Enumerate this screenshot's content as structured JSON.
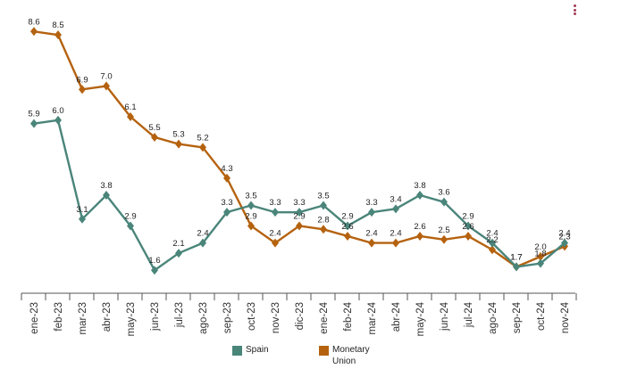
{
  "chart_data": {
    "type": "line",
    "categories": [
      "ene-23",
      "feb-23",
      "mar-23",
      "abr-23",
      "may-23",
      "jun-23",
      "jul-23",
      "ago-23",
      "sep-23",
      "oct-23",
      "nov-23",
      "dic-23",
      "ene-24",
      "feb-24",
      "mar-24",
      "abr-24",
      "may-24",
      "jun-24",
      "jul-24",
      "ago-24",
      "sep-24",
      "oct-24",
      "nov-24"
    ],
    "series": [
      {
        "name": "Spain",
        "color": "#4a857a",
        "values": [
          5.9,
          6.0,
          3.1,
          3.8,
          2.9,
          1.6,
          2.1,
          2.4,
          3.3,
          3.5,
          3.3,
          3.3,
          3.5,
          2.9,
          3.3,
          3.4,
          3.8,
          3.6,
          2.9,
          2.4,
          1.7,
          1.8,
          2.4
        ]
      },
      {
        "name": "Monetary Union",
        "color": "#b5620f",
        "values": [
          8.6,
          8.5,
          6.9,
          7.0,
          6.1,
          5.5,
          5.3,
          5.2,
          4.3,
          2.9,
          2.4,
          2.9,
          2.8,
          2.6,
          2.4,
          2.4,
          2.6,
          2.5,
          2.6,
          2.2,
          1.7,
          2.0,
          2.3
        ]
      }
    ],
    "title": "",
    "xlabel": "",
    "ylabel": "",
    "ylim": [
      0.9,
      9.0
    ],
    "grid": false,
    "legend_position": "bottom"
  },
  "menu": {
    "icon": "kebab-menu-icon"
  }
}
